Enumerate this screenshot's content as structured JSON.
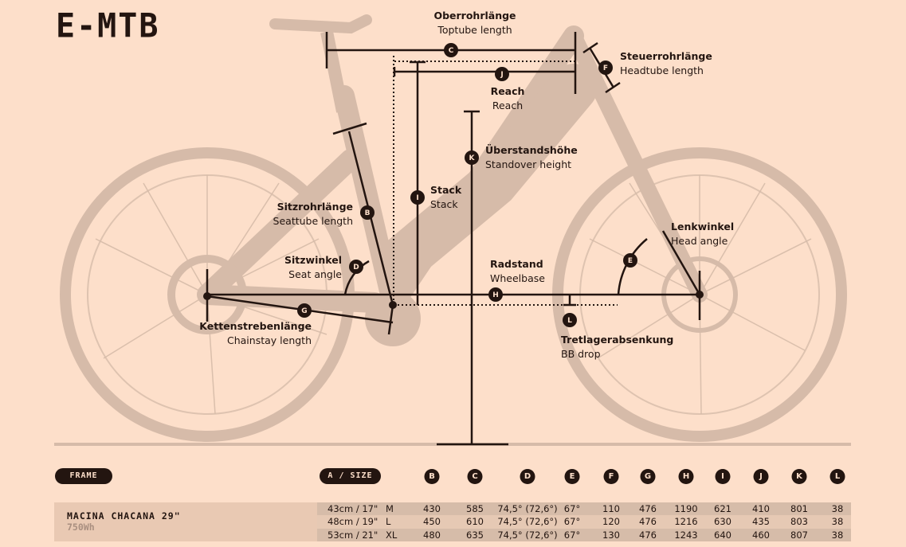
{
  "title": "E-MTB",
  "colors": {
    "background": "#fddfca",
    "silhouette": "#d6bba9",
    "ink": "#231510"
  },
  "dimensions": [
    {
      "letter": "C",
      "de": "Oberrohrlänge",
      "en": "Toptube length"
    },
    {
      "letter": "J",
      "de": "Reach",
      "en": "Reach"
    },
    {
      "letter": "F",
      "de": "Steuerrohrlänge",
      "en": "Headtube length"
    },
    {
      "letter": "K",
      "de": "Überstandshöhe",
      "en": "Standover height"
    },
    {
      "letter": "I",
      "de": "Stack",
      "en": "Stack"
    },
    {
      "letter": "B",
      "de": "Sitzrohrlänge",
      "en": "Seattube length"
    },
    {
      "letter": "D",
      "de": "Sitzwinkel",
      "en": "Seat angle"
    },
    {
      "letter": "H",
      "de": "Radstand",
      "en": "Wheelbase"
    },
    {
      "letter": "E",
      "de": "Lenkwinkel",
      "en": "Head angle"
    },
    {
      "letter": "G",
      "de": "Kettenstrebenlänge",
      "en": "Chainstay length"
    },
    {
      "letter": "L",
      "de": "Tretlagerabsenkung",
      "en": "BB drop"
    }
  ],
  "table": {
    "frame_label": "FRAME",
    "size_label": "A / SIZE",
    "columns": [
      "B",
      "C",
      "D",
      "E",
      "F",
      "G",
      "H",
      "I",
      "J",
      "K",
      "L"
    ],
    "model": "MACINA CHACANA 29\"",
    "battery": "750Wh",
    "rows": [
      {
        "size": "43cm / 17\"",
        "letter": "M",
        "values": [
          "430",
          "585",
          "74,5° (72,6°)",
          "67°",
          "110",
          "476",
          "1190",
          "621",
          "410",
          "801",
          "38"
        ]
      },
      {
        "size": "48cm / 19\"",
        "letter": "L",
        "values": [
          "450",
          "610",
          "74,5° (72,6°)",
          "67°",
          "120",
          "476",
          "1216",
          "630",
          "435",
          "803",
          "38"
        ]
      },
      {
        "size": "53cm / 21\"",
        "letter": "XL",
        "values": [
          "480",
          "635",
          "74,5° (72,6°)",
          "67°",
          "130",
          "476",
          "1243",
          "640",
          "460",
          "807",
          "38"
        ]
      }
    ]
  }
}
